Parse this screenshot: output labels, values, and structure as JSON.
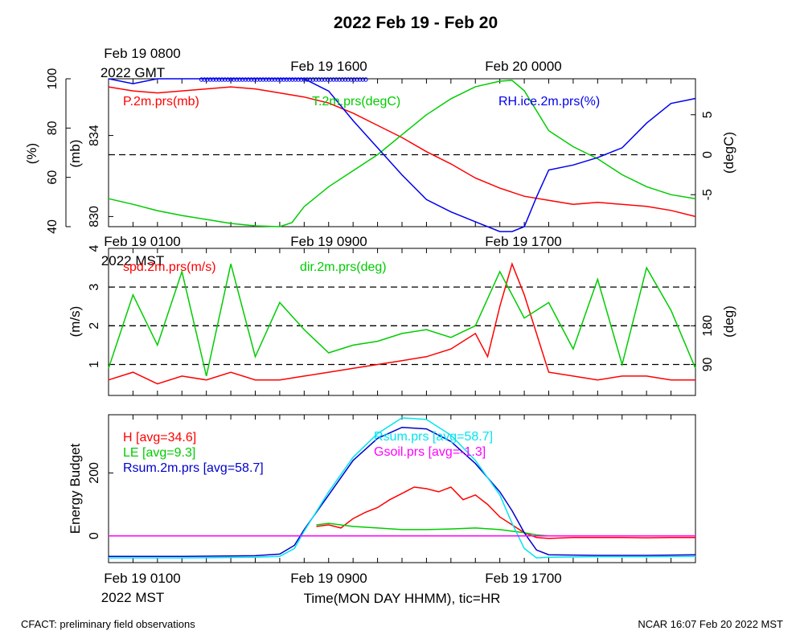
{
  "title": "2022 Feb 19 - Feb 20",
  "footer": {
    "left": "CFACT: preliminary field observations",
    "right": "NCAR 16:07 Feb 20 2022 MST"
  },
  "xlabel": "Time(MON DAY HHMM), tic=HR",
  "chart_data": [
    {
      "type": "line",
      "panel": "top",
      "time_labels": [
        "Feb 19 0800",
        "2022 GMT",
        "Feb 19 1600",
        "Feb 20 0000"
      ],
      "x_range_hours_mst": [
        0,
        24
      ],
      "left_axes": [
        {
          "label": "(%)",
          "ticks": [
            "40",
            "60",
            "80",
            "100"
          ],
          "range": [
            40,
            100
          ]
        },
        {
          "label": "(mb)",
          "ticks": [
            "830",
            "834"
          ],
          "range": [
            829.5,
            836.8
          ]
        }
      ],
      "right_axis": {
        "label": "(degC)",
        "ticks": [
          "-5",
          "0",
          "5"
        ],
        "range": [
          -9,
          9.5
        ]
      },
      "reference_line": 0,
      "series": [
        {
          "name": "P.2m.prs(mb)",
          "color": "#ff0000",
          "axis": "mb",
          "x": [
            0,
            1,
            2,
            3,
            4,
            5,
            6,
            7,
            8,
            9,
            10,
            11,
            12,
            13,
            14,
            15,
            16,
            17,
            18,
            19,
            20,
            21,
            22,
            23,
            24
          ],
          "y": [
            836.4,
            836.2,
            836.1,
            836.2,
            836.3,
            836.4,
            836.3,
            836.1,
            835.9,
            835.6,
            835.1,
            834.5,
            833.9,
            833.2,
            832.6,
            831.9,
            831.4,
            831.0,
            830.8,
            830.6,
            830.7,
            830.6,
            830.5,
            830.3,
            830.0
          ]
        },
        {
          "name": "T.2m.prs(degC)",
          "color": "#00cc00",
          "axis": "degC",
          "x": [
            0,
            1,
            2,
            3,
            4,
            5,
            6,
            7,
            7.5,
            8,
            9,
            10,
            11,
            12,
            13,
            14,
            15,
            16,
            16.5,
            17,
            18,
            19,
            20,
            21,
            22,
            23,
            24
          ],
          "y": [
            -5.5,
            -6.2,
            -7.0,
            -7.6,
            -8.1,
            -8.6,
            -8.9,
            -9.0,
            -8.5,
            -6.5,
            -4.0,
            -2.0,
            0.0,
            2.5,
            5.0,
            7.0,
            8.5,
            9.2,
            9.3,
            8.0,
            3.0,
            1.0,
            -0.5,
            -2.5,
            -4.0,
            -5.0,
            -5.5
          ]
        },
        {
          "name": "RH.ice.2m.prs(%)",
          "color": "#0000ee",
          "axis": "%",
          "x": [
            0,
            1,
            2,
            3,
            4,
            5,
            6,
            7,
            8,
            9,
            10,
            11,
            12,
            13,
            14,
            15,
            16,
            16.5,
            17,
            17.5,
            18,
            19,
            20,
            21,
            22,
            23,
            24
          ],
          "y": [
            100,
            98,
            100,
            100,
            100,
            100,
            100,
            100,
            100,
            95,
            83,
            72,
            61,
            51,
            46,
            42,
            38,
            38,
            40,
            52,
            63,
            65,
            68,
            72,
            82,
            90,
            92
          ]
        }
      ]
    },
    {
      "type": "line",
      "panel": "middle",
      "time_labels": [
        "Feb 19 0100",
        "2022 MST",
        "Feb 19 0900",
        "Feb 19 1700"
      ],
      "x_range_hours_mst": [
        0,
        24
      ],
      "left_axis": {
        "label": "(m/s)",
        "ticks": [
          "1",
          "2",
          "3",
          "4"
        ],
        "range": [
          0.2,
          4.0
        ]
      },
      "right_axis": {
        "label": "(deg)",
        "ticks": [
          "90",
          "180"
        ]
      },
      "reference_lines": [
        1,
        2,
        3
      ],
      "series": [
        {
          "name": "spd.2m.prs(m/s)",
          "color": "#ff0000",
          "axis": "m/s",
          "x": [
            0,
            1,
            2,
            3,
            4,
            5,
            6,
            7,
            8,
            9,
            10,
            11,
            12,
            13,
            14,
            15,
            15.5,
            16,
            16.5,
            17,
            18,
            19,
            20,
            21,
            22,
            23,
            24
          ],
          "y": [
            0.6,
            0.8,
            0.5,
            0.7,
            0.6,
            0.8,
            0.6,
            0.6,
            0.7,
            0.8,
            0.9,
            1.0,
            1.1,
            1.2,
            1.4,
            1.8,
            1.2,
            2.5,
            3.6,
            2.8,
            0.8,
            0.7,
            0.6,
            0.7,
            0.7,
            0.6,
            0.6
          ]
        },
        {
          "name": "dir.2m.prs(deg)",
          "color": "#00cc00",
          "axis": "deg",
          "x": [
            0,
            1,
            2,
            3,
            4,
            5,
            6,
            7,
            8,
            9,
            10,
            11,
            12,
            13,
            14,
            15,
            16,
            17,
            18,
            19,
            20,
            21,
            22,
            23,
            24
          ],
          "y": [
            0.9,
            2.8,
            1.5,
            3.4,
            0.7,
            3.6,
            1.2,
            2.6,
            1.9,
            1.3,
            1.5,
            1.6,
            1.8,
            1.9,
            1.7,
            2.0,
            3.4,
            2.2,
            2.6,
            1.4,
            3.2,
            1.0,
            3.5,
            2.4,
            0.9
          ]
        }
      ]
    },
    {
      "type": "line",
      "panel": "bottom",
      "time_labels": [
        "Feb 19 0100",
        "2022 MST",
        "Feb 19 0900",
        "Feb 19 1700"
      ],
      "x_range_hours_mst": [
        0,
        24
      ],
      "ylabel": "Energy Budget",
      "y_ticks": [
        "0",
        "200"
      ],
      "ylim": [
        -85,
        385
      ],
      "reference_line": 0,
      "series": [
        {
          "name": "H [avg=34.6]",
          "color": "#ff0000",
          "x": [
            8.5,
            9,
            9.5,
            10,
            10.5,
            11,
            11.5,
            12,
            12.5,
            13,
            13.5,
            14,
            14.5,
            15,
            15.5,
            16,
            16.5,
            17,
            17.5,
            18,
            19,
            20,
            21,
            22,
            23,
            24
          ],
          "y": [
            30,
            35,
            25,
            55,
            75,
            90,
            115,
            135,
            155,
            150,
            140,
            155,
            115,
            130,
            100,
            60,
            35,
            10,
            -5,
            -8,
            -5,
            -5,
            -5,
            -6,
            -5,
            -5
          ]
        },
        {
          "name": "LE [avg=9.3]",
          "color": "#00cc00",
          "x": [
            8.5,
            9,
            10,
            11,
            12,
            13,
            14,
            15,
            16,
            17,
            17.5,
            18,
            20,
            22,
            24
          ],
          "y": [
            35,
            40,
            30,
            25,
            20,
            20,
            22,
            25,
            20,
            10,
            3,
            0,
            0,
            0,
            0
          ]
        },
        {
          "name": "Rsum.2m.prs [avg=58.7]",
          "color": "#0000cc",
          "x": [
            0,
            3,
            6,
            7,
            7.6,
            8,
            9,
            10,
            11,
            12,
            13,
            14,
            15,
            16,
            16.5,
            17,
            17.5,
            18,
            20,
            22,
            24
          ],
          "y": [
            -65,
            -65,
            -63,
            -58,
            -30,
            20,
            130,
            240,
            310,
            345,
            340,
            300,
            230,
            140,
            80,
            10,
            -45,
            -60,
            -62,
            -62,
            -60
          ]
        },
        {
          "name": "Rsum.prs [avg=58.7]",
          "color": "#00e5ee",
          "x": [
            0,
            3,
            6,
            7,
            7.6,
            8,
            9,
            10,
            11,
            12,
            13,
            14,
            15,
            16,
            16.5,
            17,
            17.5,
            18,
            20,
            22,
            24
          ],
          "y": [
            -70,
            -70,
            -68,
            -65,
            -40,
            15,
            140,
            250,
            325,
            375,
            370,
            320,
            240,
            130,
            40,
            -40,
            -70,
            -68,
            -66,
            -66,
            -65
          ]
        },
        {
          "name": "Gsoil.prs [avg=-1.3]",
          "color": "#ff00ff",
          "x": [
            0,
            24
          ],
          "y": [
            0,
            0
          ]
        }
      ]
    }
  ]
}
